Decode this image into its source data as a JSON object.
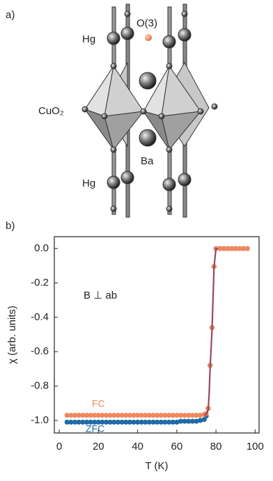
{
  "panel_a": {
    "label": "a)",
    "atoms": {
      "hg_top": "Hg",
      "o3": "O(3)",
      "cuo2": "CuO₂",
      "ba": "Ba",
      "hg_bottom": "Hg"
    }
  },
  "chart_data": {
    "type": "scatter",
    "panel_label": "b)",
    "x_label": "T (K)",
    "y_label": "χ (arb. units)",
    "annotation": "B ⊥ ab",
    "x": [
      4,
      6,
      8,
      10,
      12,
      14,
      16,
      18,
      20,
      22,
      24,
      26,
      28,
      30,
      32,
      34,
      36,
      38,
      40,
      42,
      44,
      46,
      48,
      50,
      52,
      54,
      56,
      58,
      60,
      62,
      64,
      66,
      68,
      70,
      72,
      74,
      75,
      76,
      77,
      78,
      79,
      80,
      82,
      84,
      86,
      88,
      90,
      92,
      94,
      96
    ],
    "series": [
      {
        "name": "ZFC",
        "color": "#1f6aa5",
        "values": [
          -1.01,
          -1.01,
          -1.01,
          -1.01,
          -1.01,
          -1.01,
          -1.01,
          -1.01,
          -1.01,
          -1.01,
          -1.01,
          -1.01,
          -1.01,
          -1.01,
          -1.01,
          -1.01,
          -1.01,
          -1.01,
          -1.01,
          -1.01,
          -1.01,
          -1.01,
          -1.01,
          -1.01,
          -1.01,
          -1.01,
          -1.01,
          -1.01,
          -1.01,
          -1.005,
          -1.005,
          -1.005,
          -1.005,
          -1.005,
          -1.0,
          -0.995,
          -0.975,
          -0.93,
          -0.68,
          -0.46,
          -0.105,
          0,
          0,
          0,
          0,
          0,
          0,
          0,
          0,
          0
        ]
      },
      {
        "name": "FC",
        "color": "#f0875f",
        "values": [
          -0.97,
          -0.97,
          -0.97,
          -0.97,
          -0.97,
          -0.97,
          -0.97,
          -0.97,
          -0.97,
          -0.97,
          -0.97,
          -0.97,
          -0.97,
          -0.97,
          -0.97,
          -0.97,
          -0.97,
          -0.97,
          -0.97,
          -0.97,
          -0.97,
          -0.97,
          -0.97,
          -0.97,
          -0.97,
          -0.97,
          -0.97,
          -0.97,
          -0.97,
          -0.97,
          -0.97,
          -0.97,
          -0.97,
          -0.97,
          -0.97,
          -0.965,
          -0.96,
          -0.93,
          -0.68,
          -0.46,
          -0.105,
          0,
          0,
          0,
          0,
          0,
          0,
          0,
          0,
          0
        ]
      },
      {
        "style": "line",
        "color": "#9b4758",
        "x": [
          74,
          75,
          76,
          76.5,
          77,
          78,
          79,
          80,
          81
        ],
        "values": [
          -0.97,
          -0.965,
          -0.94,
          -0.85,
          -0.7,
          -0.47,
          -0.11,
          0,
          0
        ]
      }
    ],
    "xlim": [
      -2.5,
      102
    ],
    "xticks": [
      0,
      20,
      40,
      60,
      80,
      100
    ],
    "ylim": [
      -1.073,
      0.069
    ],
    "yticks": [
      {
        "value": 0,
        "label": "0.0"
      },
      -0.2,
      -0.4,
      -0.6,
      -0.8,
      {
        "value": -1,
        "label": "-1.0"
      }
    ]
  }
}
